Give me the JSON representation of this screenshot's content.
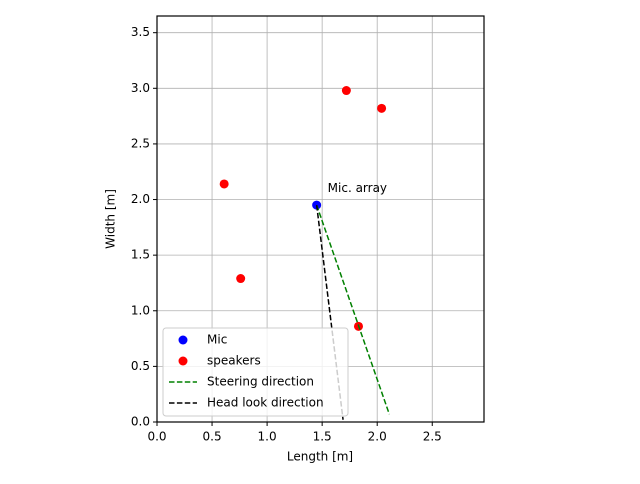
{
  "chart_data": {
    "type": "scatter",
    "xlabel": "Length [m]",
    "ylabel": "Width [m]",
    "xlim": [
      0,
      2.97
    ],
    "ylim": [
      0,
      3.65
    ],
    "xticks": [
      {
        "value": 0,
        "label": "0.0"
      },
      {
        "value": 0.5,
        "label": "0.5"
      },
      {
        "value": 1,
        "label": "1.0"
      },
      {
        "value": 1.5,
        "label": "1.5"
      },
      {
        "value": 2,
        "label": "2.0"
      },
      {
        "value": 2.5,
        "label": "2.5"
      }
    ],
    "yticks": [
      {
        "value": 0,
        "label": "0.0"
      },
      {
        "value": 0.5,
        "label": "0.5"
      },
      {
        "value": 1,
        "label": "1.0"
      },
      {
        "value": 1.5,
        "label": "1.5"
      },
      {
        "value": 2,
        "label": "2.0"
      },
      {
        "value": 2.5,
        "label": "2.5"
      },
      {
        "value": 3,
        "label": "3.0"
      },
      {
        "value": 3.5,
        "label": "3.5"
      }
    ],
    "grid": true,
    "legend": "lower left",
    "series": [
      {
        "name": "Mic",
        "type": "scatter",
        "color": "#0000ff",
        "x": [
          1.45
        ],
        "y": [
          1.95
        ]
      },
      {
        "name": "speakers",
        "type": "scatter",
        "color": "#ff0000",
        "x": [
          1.72,
          2.04,
          0.61,
          0.76,
          1.83
        ],
        "y": [
          2.98,
          2.82,
          2.14,
          1.29,
          0.86
        ]
      },
      {
        "name": "Steering direction",
        "type": "dashed-line",
        "color": "#008000",
        "x": [
          1.45,
          2.11
        ],
        "y": [
          1.95,
          0.07
        ]
      },
      {
        "name": "Head look direction",
        "type": "dashed-line",
        "color": "#000000",
        "x": [
          1.45,
          1.69
        ],
        "y": [
          1.95,
          0.02
        ]
      }
    ],
    "annotation": {
      "text": "Mic. array",
      "x": 1.55,
      "y": 2.1,
      "color": "#0000ff"
    }
  }
}
